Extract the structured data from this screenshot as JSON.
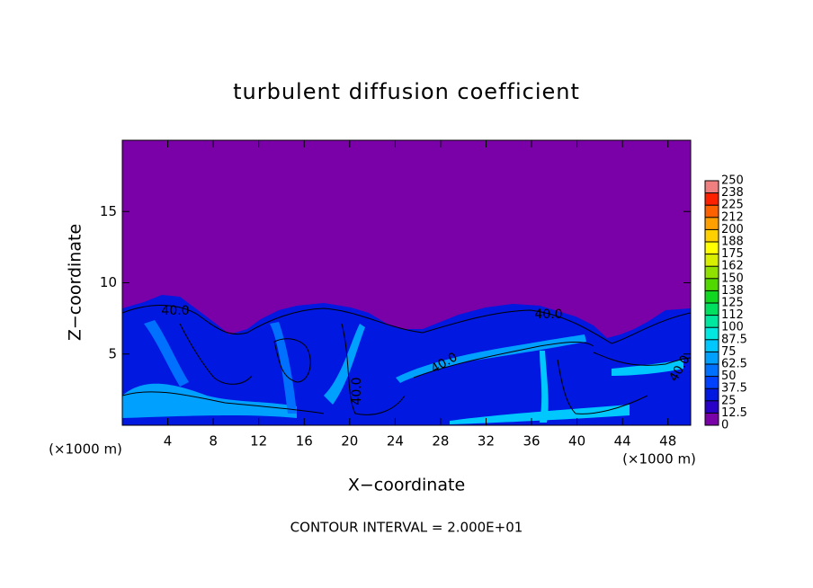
{
  "chart_data": {
    "type": "contour",
    "title": "turbulent diffusion coefficient",
    "x_label": "X−coordinate",
    "y_label": "Z−coordinate",
    "x_unit_left": "(×1000 m)",
    "x_unit_right": "(×1000 m)",
    "footnote": "CONTOUR INTERVAL = 2.000E+01",
    "xlim": [
      0,
      50
    ],
    "xticks": [
      4,
      8,
      12,
      16,
      20,
      24,
      28,
      32,
      36,
      40,
      44,
      48
    ],
    "ylim": [
      0,
      20
    ],
    "yticks": [
      5,
      10,
      15
    ],
    "contour_labels": [
      {
        "value": 40,
        "label": "40.0"
      },
      {
        "value": 40,
        "label": "40.0"
      },
      {
        "value": 40,
        "label": "40.0"
      },
      {
        "value": 40,
        "label": "40.0"
      },
      {
        "value": 40,
        "label": "40.0"
      }
    ],
    "colorbar": {
      "levels": [
        0,
        12.5,
        25,
        37.5,
        50,
        62.5,
        75,
        87.5,
        100,
        {
          "value": 112.5,
          "label": "112"
        },
        125,
        {
          "value": 137.5,
          "label": "138"
        },
        150,
        {
          "value": 162.5,
          "label": "162"
        },
        175,
        {
          "value": 187.5,
          "label": "188"
        },
        200,
        {
          "value": 212.5,
          "label": "212"
        },
        225,
        {
          "value": 237.5,
          "label": "238"
        },
        250
      ],
      "colors": [
        "#7a00a8",
        "#2800c8",
        "#0018e0",
        "#0040ff",
        "#0070ff",
        "#00a0ff",
        "#00c8ff",
        "#00e8e0",
        "#00e8a0",
        "#00e060",
        "#10d820",
        "#50d800",
        "#90e000",
        "#d8f000",
        "#ffff00",
        "#ffd000",
        "#ffa000",
        "#ff6000",
        "#ff2000",
        "#f08080"
      ]
    }
  }
}
